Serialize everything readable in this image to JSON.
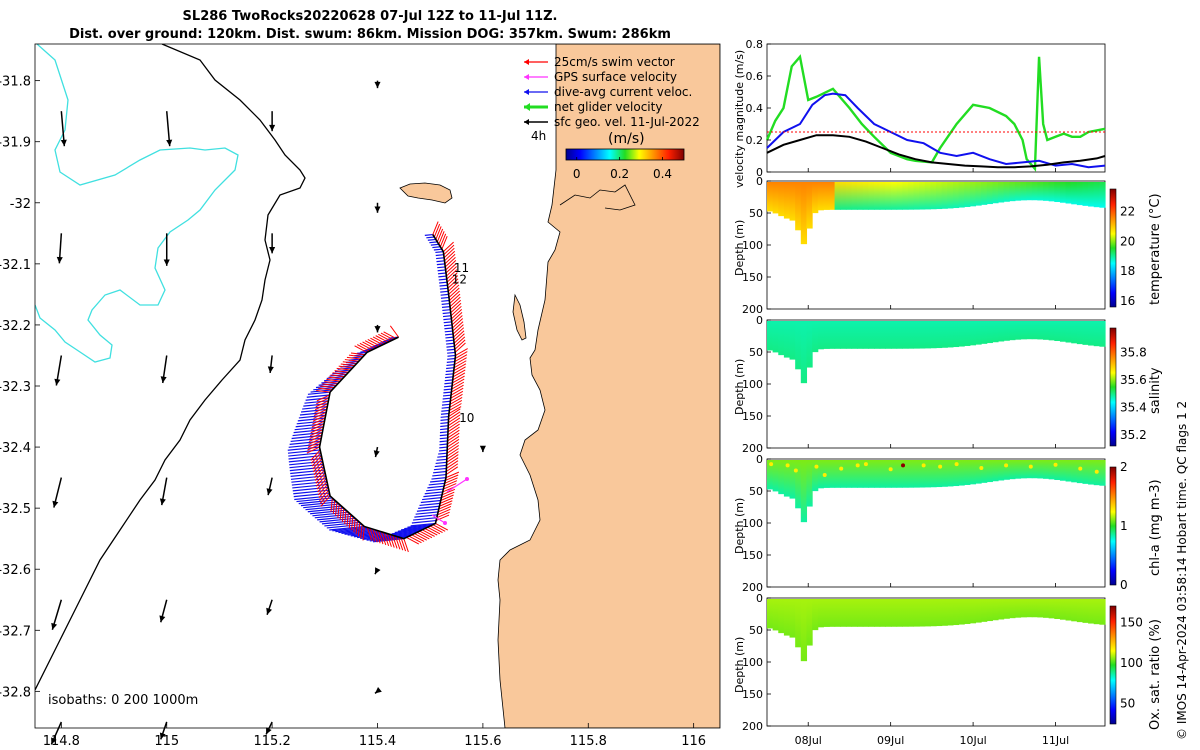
{
  "header": {
    "title_line1": "SL286 TwoRocks20220628 07-Jul 12Z to 11-Jul 11Z.",
    "title_line2": "Dist. over ground: 120km. Dist. swum: 86km. Mission DOG: 357km. Swum: 286km"
  },
  "credit": "© IMOS 14-Apr-2024 03:58:14 Hobart time. QC flags 1  2",
  "colors": {
    "land": "#f9c89b",
    "isobath_200": "#000000",
    "isobath_1000": "#40e0e0",
    "swim": "#ff0000",
    "gps": "#ff33ff",
    "dive_avg": "#1010ee",
    "net": "#22dd22",
    "geo": "#000000"
  },
  "chart_data": [
    {
      "type": "map",
      "xlim": [
        114.75,
        116.05
      ],
      "ylim": [
        -32.86,
        -31.74
      ],
      "x_ticks": [
        "114.8",
        "115",
        "115.2",
        "115.4",
        "115.6",
        "115.8",
        "116"
      ],
      "x_tick_values": [
        114.8,
        115,
        115.2,
        115.4,
        115.6,
        115.8,
        116
      ],
      "y_ticks": [
        "-31.8",
        "-31.9",
        "-32",
        "-32.1",
        "-32.2",
        "-32.3",
        "-32.4",
        "-32.5",
        "-32.6",
        "-32.7",
        "-32.8"
      ],
      "y_tick_values": [
        -31.8,
        -31.9,
        -32,
        -32.1,
        -32.2,
        -32.3,
        -32.4,
        -32.5,
        -32.6,
        -32.7,
        -32.8
      ],
      "legend": {
        "position": "top-right",
        "entries": [
          "25cm/s swim vector",
          "GPS surface velocity",
          "dive-avg current veloc.",
          "net glider velocity",
          "sfc geo. vel. 11-Jul-2022"
        ],
        "time_label": "4h"
      },
      "colorbar": {
        "label": "(m/s)",
        "ticks": [
          "0",
          "0.2",
          "0.4"
        ],
        "tick_values": [
          0,
          0.2,
          0.4
        ],
        "range": [
          -0.05,
          0.5
        ]
      },
      "isobath_label": "isobaths: 0   200  1000m",
      "day_labels": [
        {
          "text": "11",
          "lon": 115.545,
          "lat": -32.113
        },
        {
          "text": "12",
          "lon": 115.541,
          "lat": -32.132
        },
        {
          "text": "10",
          "lon": 115.555,
          "lat": -32.359
        }
      ],
      "glider_track": [
        [
          115.505,
          -32.052
        ],
        [
          115.525,
          -32.08
        ],
        [
          115.535,
          -32.15
        ],
        [
          115.548,
          -32.25
        ],
        [
          115.535,
          -32.35
        ],
        [
          115.53,
          -32.45
        ],
        [
          115.51,
          -32.525
        ],
        [
          115.45,
          -32.55
        ],
        [
          115.375,
          -32.53
        ],
        [
          115.31,
          -32.48
        ],
        [
          115.29,
          -32.4
        ],
        [
          115.31,
          -32.31
        ],
        [
          115.38,
          -32.245
        ],
        [
          115.44,
          -32.22
        ]
      ],
      "geo_vectors": [
        {
          "lon": 114.8,
          "lat": -31.85,
          "u": 0.006,
          "v": -0.07
        },
        {
          "lon": 115.0,
          "lat": -31.85,
          "u": 0.006,
          "v": -0.07
        },
        {
          "lon": 115.2,
          "lat": -31.85,
          "u": 0,
          "v": -0.04
        },
        {
          "lon": 115.4,
          "lat": -31.8,
          "u": 0,
          "v": -0.015
        },
        {
          "lon": 114.8,
          "lat": -32.05,
          "u": -0.004,
          "v": -0.06
        },
        {
          "lon": 115.0,
          "lat": -32.05,
          "u": 0,
          "v": -0.065
        },
        {
          "lon": 115.2,
          "lat": -32.05,
          "u": 0,
          "v": -0.04
        },
        {
          "lon": 115.4,
          "lat": -32.0,
          "u": 0,
          "v": -0.02
        },
        {
          "lon": 114.8,
          "lat": -32.25,
          "u": -0.01,
          "v": -0.06
        },
        {
          "lon": 115.0,
          "lat": -32.25,
          "u": -0.008,
          "v": -0.055
        },
        {
          "lon": 115.2,
          "lat": -32.25,
          "u": -0.004,
          "v": -0.035
        },
        {
          "lon": 115.4,
          "lat": -32.2,
          "u": 0,
          "v": -0.015
        },
        {
          "lon": 114.8,
          "lat": -32.45,
          "u": -0.015,
          "v": -0.06
        },
        {
          "lon": 115.0,
          "lat": -32.45,
          "u": -0.01,
          "v": -0.055
        },
        {
          "lon": 115.2,
          "lat": -32.45,
          "u": -0.008,
          "v": -0.035
        },
        {
          "lon": 115.4,
          "lat": -32.4,
          "u": -0.004,
          "v": -0.02
        },
        {
          "lon": 115.6,
          "lat": -32.4,
          "u": 0,
          "v": -0.01
        },
        {
          "lon": 114.8,
          "lat": -32.65,
          "u": -0.018,
          "v": -0.06
        },
        {
          "lon": 115.0,
          "lat": -32.65,
          "u": -0.012,
          "v": -0.045
        },
        {
          "lon": 115.2,
          "lat": -32.65,
          "u": -0.01,
          "v": -0.03
        },
        {
          "lon": 115.4,
          "lat": -32.6,
          "u": -0.005,
          "v": -0.01
        },
        {
          "lon": 114.8,
          "lat": -32.85,
          "u": -0.02,
          "v": -0.045
        },
        {
          "lon": 115.0,
          "lat": -32.85,
          "u": -0.012,
          "v": -0.035
        },
        {
          "lon": 115.2,
          "lat": -32.85,
          "u": -0.012,
          "v": -0.025
        },
        {
          "lon": 115.4,
          "lat": -32.8,
          "u": -0.005,
          "v": -0.004
        }
      ]
    },
    {
      "type": "line",
      "ylabel": "velocity magnitude (m/s)",
      "xlim": [
        0,
        4.1
      ],
      "ylim": [
        0,
        0.8
      ],
      "y_ticks": [
        "0",
        "0.2",
        "0.4",
        "0.6",
        "0.8"
      ],
      "y_tick_values": [
        0,
        0.2,
        0.4,
        0.6,
        0.8
      ],
      "series": [
        {
          "color": "#22dd22",
          "x": [
            0,
            0.1,
            0.2,
            0.3,
            0.4,
            0.5,
            0.6,
            0.8,
            1.0,
            1.15,
            1.3,
            1.5,
            1.7,
            1.8,
            2.0,
            2.1,
            2.3,
            2.5,
            2.7,
            2.9,
            3.0,
            3.1,
            3.15,
            3.2,
            3.25,
            3.3,
            3.35,
            3.4,
            3.5,
            3.6,
            3.7,
            3.8,
            3.9,
            4.0,
            4.1
          ],
          "y": [
            0.2,
            0.32,
            0.4,
            0.66,
            0.72,
            0.45,
            0.47,
            0.52,
            0.4,
            0.3,
            0.22,
            0.12,
            0.08,
            0.07,
            0.06,
            0.15,
            0.3,
            0.42,
            0.4,
            0.35,
            0.3,
            0.2,
            0.08,
            0.05,
            0.02,
            0.72,
            0.3,
            0.2,
            0.22,
            0.24,
            0.22,
            0.22,
            0.25,
            0.26,
            0.27
          ]
        },
        {
          "color": "#1010ee",
          "x": [
            0,
            0.2,
            0.4,
            0.55,
            0.7,
            0.8,
            0.95,
            1.1,
            1.3,
            1.5,
            1.7,
            1.9,
            2.1,
            2.3,
            2.5,
            2.7,
            2.9,
            3.1,
            3.3,
            3.5,
            3.7,
            3.9,
            4.1
          ],
          "y": [
            0.15,
            0.25,
            0.3,
            0.42,
            0.48,
            0.49,
            0.48,
            0.4,
            0.3,
            0.25,
            0.2,
            0.18,
            0.12,
            0.1,
            0.12,
            0.08,
            0.05,
            0.06,
            0.07,
            0.04,
            0.05,
            0.03,
            0.04
          ]
        },
        {
          "color": "#000000",
          "x": [
            0,
            0.2,
            0.4,
            0.6,
            0.8,
            1.0,
            1.2,
            1.4,
            1.6,
            1.8,
            2.0,
            2.2,
            2.4,
            2.6,
            2.8,
            3.0,
            3.2,
            3.4,
            3.6,
            3.8,
            4.0,
            4.1
          ],
          "y": [
            0.12,
            0.17,
            0.2,
            0.23,
            0.23,
            0.22,
            0.19,
            0.15,
            0.11,
            0.08,
            0.06,
            0.05,
            0.04,
            0.035,
            0.03,
            0.03,
            0.035,
            0.045,
            0.06,
            0.07,
            0.085,
            0.1
          ]
        },
        {
          "color": "#ff0000",
          "dashed": true,
          "x": [
            0,
            4.1
          ],
          "y": [
            0.25,
            0.25
          ]
        }
      ]
    },
    {
      "type": "heatmap",
      "ylabel": "Depth (m)",
      "cbar_label": "temperature (°C)",
      "cbar_ticks": [
        "16",
        "18",
        "20",
        "22"
      ],
      "cbar_tick_values": [
        16,
        18,
        20,
        22
      ],
      "cbar_range": [
        15.6,
        23.5
      ],
      "surface_value": 21.2,
      "deep_value": 18.6,
      "y_ticks": [
        "0",
        "50",
        "100",
        "150",
        "200"
      ],
      "y_tick_values": [
        0,
        50,
        100,
        150,
        200
      ]
    },
    {
      "type": "heatmap",
      "ylabel": "Depth (m)",
      "cbar_label": "salinity",
      "cbar_ticks": [
        "35.2",
        "35.4",
        "35.6",
        "35.8"
      ],
      "cbar_tick_values": [
        35.2,
        35.4,
        35.6,
        35.8
      ],
      "cbar_range": [
        35.12,
        35.98
      ],
      "surface_value": 35.48,
      "deep_value": 35.5,
      "y_ticks": [
        "0",
        "50",
        "100",
        "150",
        "200"
      ],
      "y_tick_values": [
        0,
        50,
        100,
        150,
        200
      ]
    },
    {
      "type": "heatmap",
      "ylabel": "Depth (m)",
      "cbar_label": "chl-a (mg m-3)",
      "cbar_ticks": [
        "0",
        "1",
        "2"
      ],
      "cbar_tick_values": [
        0,
        1,
        2
      ],
      "cbar_range": [
        0,
        2
      ],
      "surface_value": 1.1,
      "deep_value": 0.85,
      "y_ticks": [
        "0",
        "50",
        "100",
        "150",
        "200"
      ],
      "y_tick_values": [
        0,
        50,
        100,
        150,
        200
      ]
    },
    {
      "type": "heatmap",
      "ylabel": "Depth (m)",
      "cbar_label": "Ox. sat. ratio (%)",
      "cbar_ticks": [
        "50",
        "100",
        "150"
      ],
      "cbar_tick_values": [
        50,
        100,
        150
      ],
      "cbar_range": [
        25,
        170
      ],
      "surface_value": 108,
      "deep_value": 104,
      "y_ticks": [
        "0",
        "50",
        "100",
        "150",
        "200"
      ],
      "y_tick_values": [
        0,
        50,
        100,
        150,
        200
      ]
    }
  ],
  "time_axis": {
    "ticks": [
      "08Jul",
      "09Jul",
      "10Jul",
      "11Jul"
    ],
    "tick_values": [
      0.5,
      1.5,
      2.5,
      3.5
    ],
    "xlim": [
      0,
      4.1
    ]
  }
}
